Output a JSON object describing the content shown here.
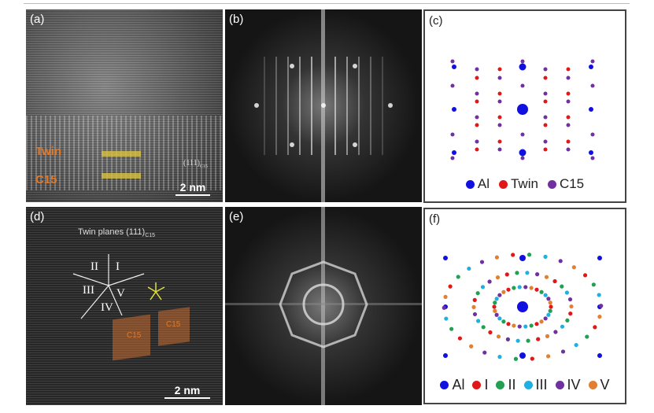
{
  "panels": {
    "a": {
      "label": "(a)",
      "twin_label": "Twin",
      "c15_label": "C15",
      "plane_label": "(111)",
      "plane_sub": "C15",
      "scale": "2 nm"
    },
    "b": {
      "label": "(b)"
    },
    "c": {
      "label": "(c)",
      "legend": [
        {
          "name": "Al",
          "color": "#1010e0"
        },
        {
          "name": "Twin",
          "color": "#e01818"
        },
        {
          "name": "C15",
          "color": "#7030a0"
        }
      ]
    },
    "d": {
      "label": "(d)",
      "title": "Twin planes (111)",
      "title_sub": "C15",
      "domains": [
        "I",
        "II",
        "III",
        "IV",
        "V"
      ],
      "c15_a": "C15",
      "c15_b": "C15",
      "scale": "2 nm"
    },
    "e": {
      "label": "(e)"
    },
    "f": {
      "label": "(f)",
      "legend": [
        {
          "name": "Al",
          "color": "#1010e0"
        },
        {
          "name": "I",
          "color": "#e01818"
        },
        {
          "name": "II",
          "color": "#20a050"
        },
        {
          "name": "III",
          "color": "#20b0e0"
        },
        {
          "name": "IV",
          "color": "#7030a0"
        },
        {
          "name": "V",
          "color": "#e08030"
        }
      ]
    }
  }
}
